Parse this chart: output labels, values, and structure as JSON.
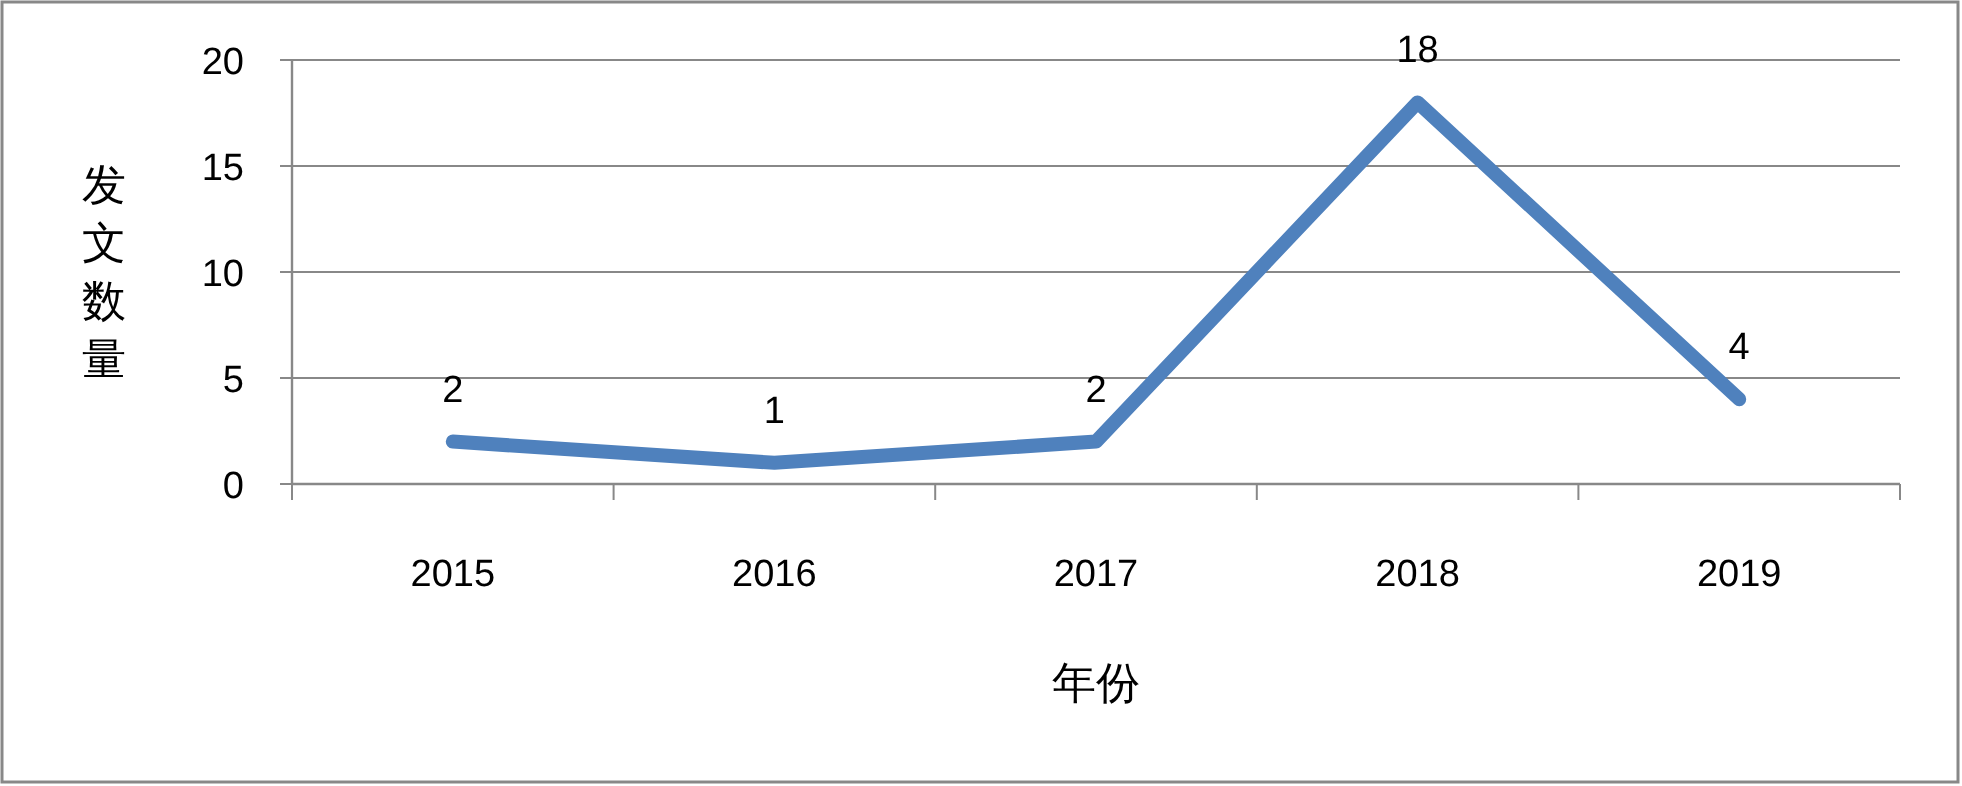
{
  "chart_data": {
    "type": "line",
    "categories": [
      "2015",
      "2016",
      "2017",
      "2018",
      "2019"
    ],
    "values": [
      2,
      1,
      2,
      18,
      4
    ],
    "color": "#4f81bd",
    "ylim": [
      0,
      20
    ],
    "yticks": [
      0,
      5,
      10,
      15,
      20
    ],
    "grid": "y",
    "data_labels": true,
    "xlabel": "年份",
    "ylabel": "发文数量"
  }
}
